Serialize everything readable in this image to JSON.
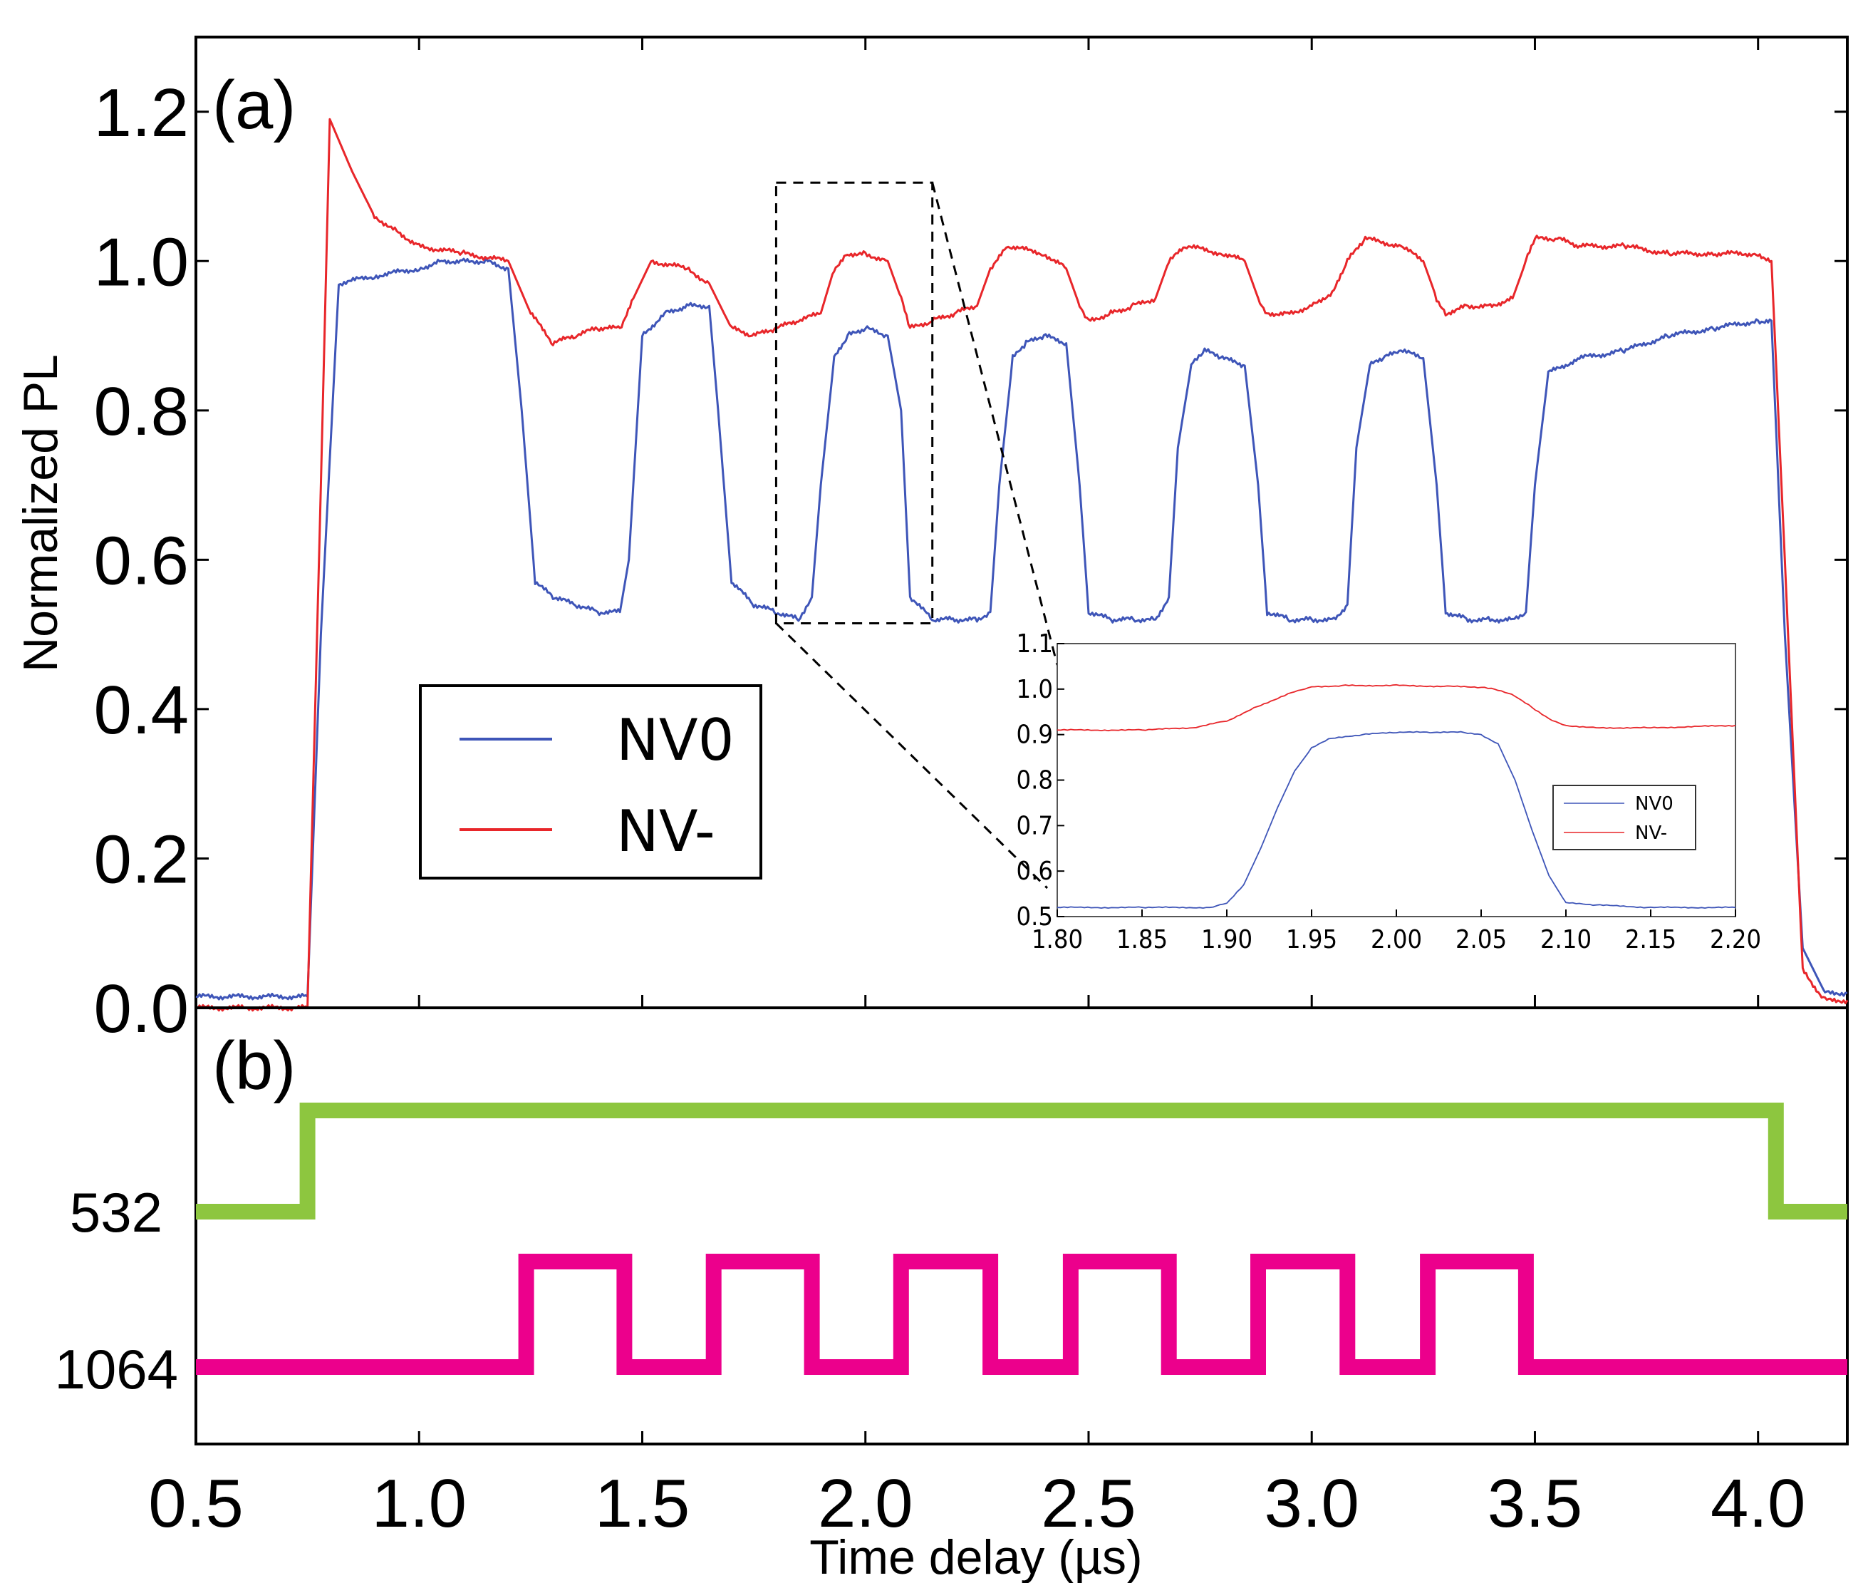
{
  "chart_data": [
    {
      "id": "panel-a",
      "type": "line",
      "panel_label": "(a)",
      "ylabel": "Normalized PL",
      "xlim": [
        0.5,
        4.2
      ],
      "ylim": [
        0.0,
        1.3
      ],
      "yticks": [
        "0.0",
        "0.2",
        "0.4",
        "0.6",
        "0.8",
        "1.0",
        "1.2"
      ],
      "legend": {
        "location": "center-left",
        "entries": [
          "NV0",
          "NV-"
        ]
      },
      "series": [
        {
          "name": "NV0",
          "color": "#3e55b8",
          "x": [
            0.5,
            0.75,
            0.78,
            0.82,
            0.9,
            1.0,
            1.05,
            1.1,
            1.15,
            1.2,
            1.23,
            1.26,
            1.3,
            1.35,
            1.4,
            1.45,
            1.47,
            1.5,
            1.55,
            1.6,
            1.65,
            1.67,
            1.7,
            1.75,
            1.8,
            1.85,
            1.88,
            1.9,
            1.93,
            1.96,
            2.0,
            2.05,
            2.08,
            2.1,
            2.15,
            2.2,
            2.25,
            2.28,
            2.3,
            2.33,
            2.36,
            2.4,
            2.45,
            2.48,
            2.5,
            2.55,
            2.6,
            2.65,
            2.68,
            2.7,
            2.73,
            2.76,
            2.8,
            2.85,
            2.88,
            2.9,
            2.95,
            3.0,
            3.05,
            3.08,
            3.1,
            3.13,
            3.16,
            3.2,
            3.25,
            3.28,
            3.3,
            3.35,
            3.4,
            3.45,
            3.48,
            3.5,
            3.53,
            3.6,
            3.7,
            3.8,
            3.9,
            4.0,
            4.03,
            4.06,
            4.1,
            4.15,
            4.2
          ],
          "y": [
            0.015,
            0.015,
            0.5,
            0.97,
            0.98,
            0.99,
            1.0,
            1.0,
            1.0,
            0.99,
            0.8,
            0.57,
            0.55,
            0.54,
            0.53,
            0.53,
            0.6,
            0.9,
            0.93,
            0.94,
            0.94,
            0.8,
            0.57,
            0.54,
            0.53,
            0.52,
            0.55,
            0.7,
            0.87,
            0.9,
            0.91,
            0.9,
            0.8,
            0.55,
            0.52,
            0.52,
            0.52,
            0.53,
            0.7,
            0.87,
            0.89,
            0.9,
            0.89,
            0.7,
            0.53,
            0.52,
            0.52,
            0.52,
            0.55,
            0.75,
            0.86,
            0.88,
            0.87,
            0.86,
            0.7,
            0.53,
            0.52,
            0.52,
            0.52,
            0.54,
            0.75,
            0.86,
            0.87,
            0.88,
            0.87,
            0.7,
            0.53,
            0.52,
            0.52,
            0.52,
            0.53,
            0.7,
            0.85,
            0.87,
            0.88,
            0.9,
            0.91,
            0.92,
            0.92,
            0.5,
            0.08,
            0.02,
            0.02
          ]
        },
        {
          "name": "NV-",
          "color": "#e8262a",
          "x": [
            0.5,
            0.75,
            0.78,
            0.8,
            0.85,
            0.9,
            0.95,
            1.0,
            1.1,
            1.2,
            1.25,
            1.3,
            1.35,
            1.4,
            1.45,
            1.48,
            1.52,
            1.6,
            1.65,
            1.7,
            1.75,
            1.8,
            1.85,
            1.9,
            1.93,
            1.96,
            2.0,
            2.05,
            2.08,
            2.1,
            2.15,
            2.2,
            2.25,
            2.28,
            2.32,
            2.4,
            2.45,
            2.48,
            2.5,
            2.55,
            2.6,
            2.65,
            2.68,
            2.72,
            2.8,
            2.85,
            2.88,
            2.9,
            2.95,
            3.0,
            3.05,
            3.08,
            3.12,
            3.2,
            3.25,
            3.28,
            3.3,
            3.35,
            3.4,
            3.45,
            3.48,
            3.5,
            3.55,
            3.6,
            3.7,
            3.8,
            3.9,
            4.0,
            4.03,
            4.06,
            4.1,
            4.15,
            4.2
          ],
          "y": [
            0.0,
            0.0,
            0.7,
            1.19,
            1.12,
            1.06,
            1.04,
            1.02,
            1.01,
            1.0,
            0.93,
            0.89,
            0.9,
            0.91,
            0.91,
            0.95,
            1.0,
            0.99,
            0.97,
            0.91,
            0.9,
            0.91,
            0.92,
            0.93,
            0.99,
            1.01,
            1.01,
            1.0,
            0.95,
            0.91,
            0.92,
            0.93,
            0.94,
            0.99,
            1.02,
            1.01,
            0.99,
            0.94,
            0.92,
            0.93,
            0.94,
            0.95,
            1.0,
            1.02,
            1.01,
            1.0,
            0.95,
            0.93,
            0.93,
            0.94,
            0.96,
            1.0,
            1.03,
            1.02,
            1.0,
            0.95,
            0.93,
            0.94,
            0.94,
            0.95,
            1.0,
            1.03,
            1.03,
            1.02,
            1.02,
            1.01,
            1.01,
            1.01,
            1.0,
            0.6,
            0.05,
            0.01,
            0.01
          ]
        }
      ],
      "zoom_box": {
        "x": [
          1.8,
          2.15
        ],
        "y": [
          0.515,
          1.105
        ]
      }
    },
    {
      "id": "panel-a-inset",
      "type": "line",
      "xlim": [
        1.8,
        2.2
      ],
      "ylim": [
        0.5,
        1.1
      ],
      "xticks": [
        "1.80",
        "1.85",
        "1.90",
        "1.95",
        "2.00",
        "2.05",
        "2.10",
        "2.15",
        "2.20"
      ],
      "yticks": [
        "0.5",
        "0.6",
        "0.7",
        "0.8",
        "0.9",
        "1.0",
        "1.1"
      ],
      "legend": {
        "location": "center-right",
        "entries": [
          "NV0",
          "NV-"
        ]
      },
      "series": [
        {
          "name": "NV0",
          "color": "#3e55b8",
          "x": [
            1.8,
            1.85,
            1.89,
            1.9,
            1.91,
            1.92,
            1.93,
            1.94,
            1.95,
            1.96,
            1.98,
            2.0,
            2.02,
            2.04,
            2.05,
            2.06,
            2.07,
            2.08,
            2.09,
            2.1,
            2.12,
            2.15,
            2.2
          ],
          "y": [
            0.52,
            0.52,
            0.52,
            0.53,
            0.57,
            0.65,
            0.74,
            0.82,
            0.87,
            0.89,
            0.9,
            0.905,
            0.905,
            0.905,
            0.9,
            0.88,
            0.8,
            0.69,
            0.59,
            0.53,
            0.525,
            0.52,
            0.52
          ]
        },
        {
          "name": "NV-",
          "color": "#e8262a",
          "x": [
            1.8,
            1.85,
            1.88,
            1.9,
            1.92,
            1.94,
            1.95,
            1.97,
            2.0,
            2.03,
            2.05,
            2.06,
            2.07,
            2.08,
            2.09,
            2.1,
            2.12,
            2.15,
            2.2
          ],
          "y": [
            0.91,
            0.91,
            0.915,
            0.93,
            0.965,
            0.995,
            1.005,
            1.008,
            1.008,
            1.006,
            1.004,
            0.998,
            0.985,
            0.96,
            0.935,
            0.92,
            0.915,
            0.915,
            0.92
          ]
        }
      ]
    },
    {
      "id": "panel-b",
      "type": "line",
      "panel_label": "(b)",
      "xlabel": "Time delay (µs)",
      "xlim": [
        0.5,
        4.2
      ],
      "xticks": [
        "0.5",
        "1.0",
        "1.5",
        "2.0",
        "2.5",
        "3.0",
        "3.5",
        "4.0"
      ],
      "series": [
        {
          "name": "532",
          "color": "#8dc63f",
          "x": [
            0.5,
            0.75,
            0.75,
            4.04,
            4.04,
            4.2
          ],
          "level": [
            "low",
            "low",
            "high",
            "high",
            "low",
            "low"
          ]
        },
        {
          "name": "1064",
          "color": "#ec008c",
          "x": [
            0.5,
            1.24,
            1.24,
            1.46,
            1.46,
            1.66,
            1.66,
            1.88,
            1.88,
            2.08,
            2.08,
            2.28,
            2.28,
            2.46,
            2.46,
            2.68,
            2.68,
            2.88,
            2.88,
            3.08,
            3.08,
            3.26,
            3.26,
            3.48,
            3.48,
            4.2
          ],
          "level": [
            "low",
            "low",
            "high",
            "high",
            "low",
            "low",
            "high",
            "high",
            "low",
            "low",
            "high",
            "high",
            "low",
            "low",
            "high",
            "high",
            "low",
            "low",
            "high",
            "high",
            "low",
            "low",
            "high",
            "high",
            "low",
            "low"
          ]
        }
      ]
    }
  ]
}
